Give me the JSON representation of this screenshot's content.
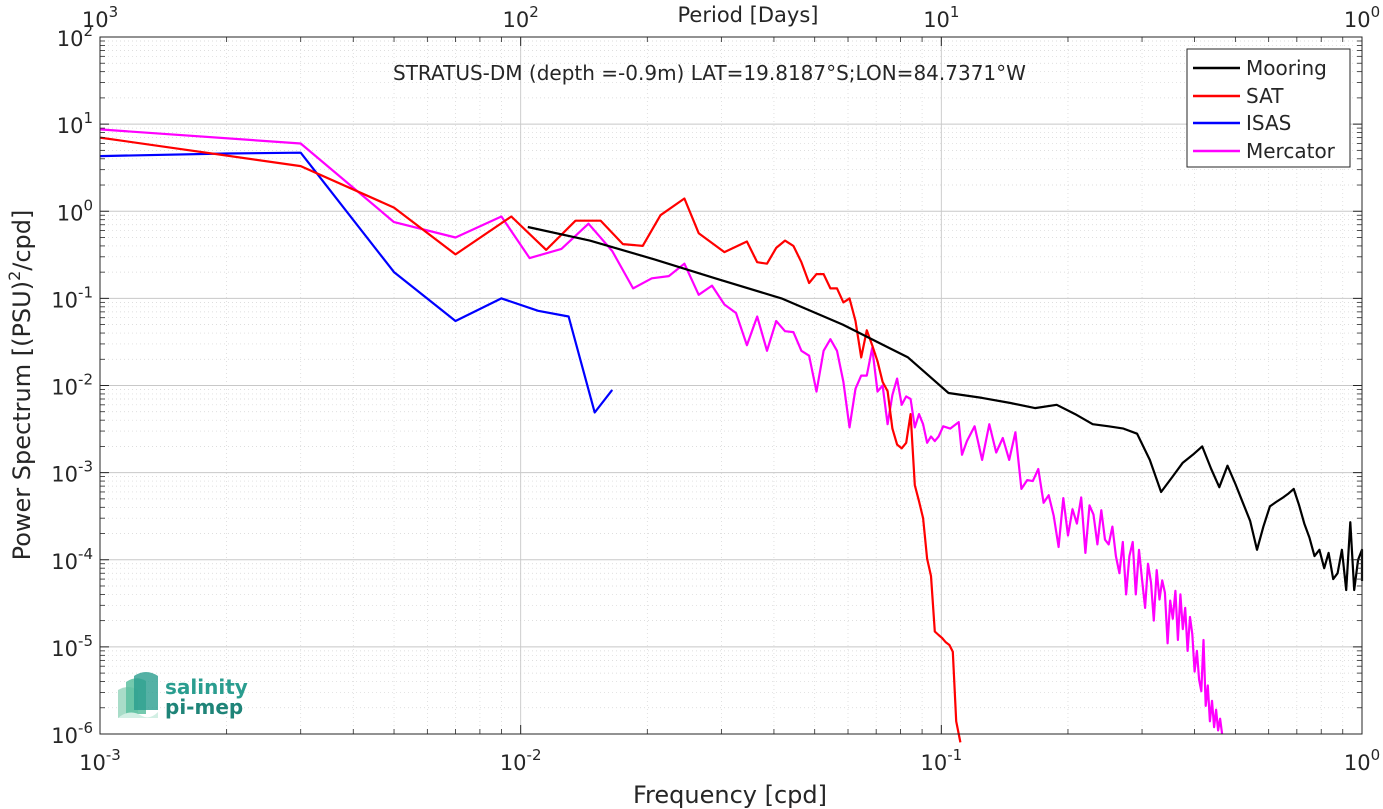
{
  "chart_data": {
    "type": "line",
    "title": "STRATUS-DM (depth =-0.9m) LAT=19.8187°S;LON=84.7371°W",
    "xlabel": "Frequency [cpd]",
    "ylabel_main": "Power Spectrum [(PSU)",
    "ylabel_sup": "2",
    "ylabel_tail": "/cpd]",
    "top_xlabel": "Period [Days]",
    "x_scale": "log",
    "y_scale": "log",
    "xlim": [
      0.001,
      1
    ],
    "ylim": [
      1e-06,
      100
    ],
    "grid": true,
    "legend_position": "top-right",
    "x_ticks": [
      {
        "value": 0.001,
        "base": "10",
        "exp": "-3"
      },
      {
        "value": 0.01,
        "base": "10",
        "exp": "-2"
      },
      {
        "value": 0.1,
        "base": "10",
        "exp": "-1"
      },
      {
        "value": 1,
        "base": "10",
        "exp": "0"
      }
    ],
    "top_ticks": [
      {
        "value": 0.001,
        "base": "10",
        "exp": "3"
      },
      {
        "value": 0.01,
        "base": "10",
        "exp": "2"
      },
      {
        "value": 0.1,
        "base": "10",
        "exp": "1"
      },
      {
        "value": 1,
        "base": "10",
        "exp": "0"
      }
    ],
    "y_ticks": [
      {
        "value": 100,
        "base": "10",
        "exp": "2"
      },
      {
        "value": 10,
        "base": "10",
        "exp": "1"
      },
      {
        "value": 1,
        "base": "10",
        "exp": "0"
      },
      {
        "value": 0.1,
        "base": "10",
        "exp": "-1"
      },
      {
        "value": 0.01,
        "base": "10",
        "exp": "-2"
      },
      {
        "value": 0.001,
        "base": "10",
        "exp": "-3"
      },
      {
        "value": 0.0001,
        "base": "10",
        "exp": "-4"
      },
      {
        "value": 1e-05,
        "base": "10",
        "exp": "-5"
      },
      {
        "value": 1e-06,
        "base": "10",
        "exp": "-6"
      }
    ],
    "series": [
      {
        "name": "Mooring",
        "color": "#000000",
        "points": [
          [
            0.0104,
            0.66
          ],
          [
            0.0146,
            0.46
          ],
          [
            0.0208,
            0.28
          ],
          [
            0.029,
            0.17
          ],
          [
            0.0417,
            0.1
          ],
          [
            0.0583,
            0.05
          ],
          [
            0.0833,
            0.021
          ],
          [
            0.104,
            0.0082
          ],
          [
            0.125,
            0.0072
          ],
          [
            0.146,
            0.0063
          ],
          [
            0.167,
            0.0055
          ],
          [
            0.188,
            0.006
          ],
          [
            0.208,
            0.0047
          ],
          [
            0.229,
            0.0036
          ],
          [
            0.25,
            0.0034
          ],
          [
            0.271,
            0.0032
          ],
          [
            0.292,
            0.0028
          ],
          [
            0.313,
            0.0014
          ],
          [
            0.333,
            0.0006
          ],
          [
            0.354,
            0.00089
          ],
          [
            0.375,
            0.0013
          ],
          [
            0.396,
            0.0016
          ],
          [
            0.417,
            0.002
          ],
          [
            0.438,
            0.0011
          ],
          [
            0.458,
            0.00068
          ],
          [
            0.479,
            0.0012
          ],
          [
            0.5,
            0.00074
          ],
          [
            0.521,
            0.00045
          ],
          [
            0.542,
            0.00028
          ],
          [
            0.563,
            0.00013
          ],
          [
            0.583,
            0.00024
          ],
          [
            0.604,
            0.00041
          ],
          [
            0.625,
            0.00046
          ],
          [
            0.646,
            0.00051
          ],
          [
            0.667,
            0.00057
          ],
          [
            0.688,
            0.00065
          ],
          [
            0.708,
            0.00043
          ],
          [
            0.729,
            0.00026
          ],
          [
            0.75,
            0.00018
          ],
          [
            0.771,
            0.00011
          ],
          [
            0.792,
            0.00013
          ],
          [
            0.813,
            8e-05
          ],
          [
            0.833,
            0.00012
          ],
          [
            0.854,
            6e-05
          ],
          [
            0.875,
            7e-05
          ],
          [
            0.896,
            0.00013
          ],
          [
            0.917,
            4.5e-05
          ],
          [
            0.938,
            0.00027
          ],
          [
            0.958,
            4.5e-05
          ],
          [
            0.979,
            0.0001
          ],
          [
            1.0,
            0.00013
          ],
          [
            1.0,
            5.7e-05
          ]
        ]
      },
      {
        "name": "SAT",
        "color": "#ff0000",
        "points": [
          [
            0.001,
            7
          ],
          [
            0.003,
            3.3
          ],
          [
            0.005,
            1.1
          ],
          [
            0.007,
            0.32
          ],
          [
            0.0095,
            0.87
          ],
          [
            0.0115,
            0.36
          ],
          [
            0.0135,
            0.78
          ],
          [
            0.0155,
            0.78
          ],
          [
            0.0175,
            0.42
          ],
          [
            0.0195,
            0.4
          ],
          [
            0.0215,
            0.9
          ],
          [
            0.0245,
            1.4
          ],
          [
            0.0265,
            0.56
          ],
          [
            0.0305,
            0.34
          ],
          [
            0.0345,
            0.45
          ],
          [
            0.0365,
            0.26
          ],
          [
            0.0385,
            0.25
          ],
          [
            0.0405,
            0.38
          ],
          [
            0.0425,
            0.46
          ],
          [
            0.0445,
            0.4
          ],
          [
            0.0465,
            0.26
          ],
          [
            0.0485,
            0.15
          ],
          [
            0.0505,
            0.19
          ],
          [
            0.0525,
            0.19
          ],
          [
            0.0545,
            0.13
          ],
          [
            0.0565,
            0.13
          ],
          [
            0.0585,
            0.09
          ],
          [
            0.0605,
            0.1
          ],
          [
            0.0625,
            0.055
          ],
          [
            0.0645,
            0.021
          ],
          [
            0.0665,
            0.043
          ],
          [
            0.0685,
            0.029
          ],
          [
            0.0705,
            0.019
          ],
          [
            0.0725,
            0.011
          ],
          [
            0.0745,
            0.0086
          ],
          [
            0.0765,
            0.0032
          ],
          [
            0.0785,
            0.0021
          ],
          [
            0.0805,
            0.0019
          ],
          [
            0.0825,
            0.0022
          ],
          [
            0.0845,
            0.0047
          ],
          [
            0.0865,
            0.00072
          ],
          [
            0.0885,
            0.00047
          ],
          [
            0.0905,
            0.0003
          ],
          [
            0.0925,
            0.000103
          ],
          [
            0.0945,
            6.5e-05
          ],
          [
            0.0965,
            1.5e-05
          ],
          [
            0.0985,
            1.37e-05
          ],
          [
            0.1005,
            1.26e-05
          ],
          [
            0.1025,
            1.13e-05
          ],
          [
            0.1045,
            1.05e-05
          ],
          [
            0.1065,
            8.8e-06
          ],
          [
            0.1085,
            1.4e-06
          ],
          [
            0.111,
            8e-07
          ]
        ]
      },
      {
        "name": "ISAS",
        "color": "#0000ff",
        "points": [
          [
            0.001,
            4.3
          ],
          [
            0.002,
            4.6
          ],
          [
            0.003,
            4.7
          ],
          [
            0.005,
            0.2
          ],
          [
            0.007,
            0.055
          ],
          [
            0.009,
            0.1
          ],
          [
            0.011,
            0.072
          ],
          [
            0.013,
            0.062
          ],
          [
            0.015,
            0.0049
          ],
          [
            0.0165,
            0.0089
          ]
        ]
      },
      {
        "name": "Mercator",
        "color": "#ff00ff",
        "points": [
          [
            0.001,
            8.7
          ],
          [
            0.003,
            6
          ],
          [
            0.005,
            0.75
          ],
          [
            0.007,
            0.5
          ],
          [
            0.009,
            0.87
          ],
          [
            0.0105,
            0.29
          ],
          [
            0.0125,
            0.37
          ],
          [
            0.0145,
            0.72
          ],
          [
            0.0165,
            0.35
          ],
          [
            0.0185,
            0.13
          ],
          [
            0.0205,
            0.17
          ],
          [
            0.0225,
            0.18
          ],
          [
            0.0245,
            0.25
          ],
          [
            0.0265,
            0.11
          ],
          [
            0.0285,
            0.14
          ],
          [
            0.0305,
            0.085
          ],
          [
            0.0325,
            0.068
          ],
          [
            0.0345,
            0.029
          ],
          [
            0.0365,
            0.062
          ],
          [
            0.0385,
            0.025
          ],
          [
            0.0405,
            0.055
          ],
          [
            0.0425,
            0.042
          ],
          [
            0.0445,
            0.041
          ],
          [
            0.0465,
            0.025
          ],
          [
            0.0485,
            0.022
          ],
          [
            0.0505,
            0.0085
          ],
          [
            0.0525,
            0.025
          ],
          [
            0.0545,
            0.034
          ],
          [
            0.0565,
            0.025
          ],
          [
            0.0585,
            0.011
          ],
          [
            0.0605,
            0.0033
          ],
          [
            0.0625,
            0.0092
          ],
          [
            0.0645,
            0.013
          ],
          [
            0.0665,
            0.013
          ],
          [
            0.0685,
            0.027
          ],
          [
            0.0705,
            0.0085
          ],
          [
            0.0725,
            0.01
          ],
          [
            0.0745,
            0.0036
          ],
          [
            0.0765,
            0.0078
          ],
          [
            0.0785,
            0.012
          ],
          [
            0.0805,
            0.006
          ],
          [
            0.0825,
            0.0075
          ],
          [
            0.0845,
            0.007
          ],
          [
            0.0865,
            0.0033
          ],
          [
            0.0885,
            0.0047
          ],
          [
            0.0905,
            0.0036
          ],
          [
            0.0925,
            0.0022
          ],
          [
            0.0945,
            0.0026
          ],
          [
            0.0965,
            0.0023
          ],
          [
            0.0985,
            0.0026
          ],
          [
            0.101,
            0.0034
          ],
          [
            0.105,
            0.0032
          ],
          [
            0.11,
            0.0038
          ],
          [
            0.112,
            0.0016
          ],
          [
            0.115,
            0.0023
          ],
          [
            0.12,
            0.0034
          ],
          [
            0.125,
            0.0014
          ],
          [
            0.13,
            0.0036
          ],
          [
            0.135,
            0.0017
          ],
          [
            0.14,
            0.0025
          ],
          [
            0.145,
            0.0014
          ],
          [
            0.15,
            0.0029
          ],
          [
            0.155,
            0.00065
          ],
          [
            0.16,
            0.00082
          ],
          [
            0.165,
            0.0008
          ],
          [
            0.17,
            0.0011
          ],
          [
            0.175,
            0.00045
          ],
          [
            0.18,
            0.00055
          ],
          [
            0.185,
            0.00032
          ],
          [
            0.19,
            0.00014
          ],
          [
            0.195,
            0.00051
          ],
          [
            0.2,
            0.00019
          ],
          [
            0.205,
            0.00038
          ],
          [
            0.21,
            0.00026
          ],
          [
            0.215,
            0.00052
          ],
          [
            0.22,
            0.00012
          ],
          [
            0.225,
            0.00042
          ],
          [
            0.23,
            0.00033
          ],
          [
            0.235,
            0.00015
          ],
          [
            0.24,
            0.00037
          ],
          [
            0.245,
            0.00017
          ],
          [
            0.25,
            0.00015
          ],
          [
            0.255,
            0.00024
          ],
          [
            0.26,
            0.00011
          ],
          [
            0.265,
            7e-05
          ],
          [
            0.27,
            0.00016
          ],
          [
            0.275,
            4e-05
          ],
          [
            0.28,
            0.00011
          ],
          [
            0.285,
            0.00016
          ],
          [
            0.29,
            4e-05
          ],
          [
            0.295,
            0.00013
          ],
          [
            0.3,
            6e-05
          ],
          [
            0.305,
            2.8e-05
          ],
          [
            0.31,
            9e-05
          ],
          [
            0.315,
            5.5e-05
          ],
          [
            0.32,
            2e-05
          ],
          [
            0.325,
            7.6e-05
          ],
          [
            0.33,
            3.5e-05
          ],
          [
            0.335,
            5.8e-05
          ],
          [
            0.34,
            4.2e-05
          ],
          [
            0.345,
            1.1e-05
          ],
          [
            0.35,
            3.4e-05
          ],
          [
            0.355,
            2.1e-05
          ],
          [
            0.36,
            4.4e-05
          ],
          [
            0.365,
            1.2e-05
          ],
          [
            0.37,
            4e-05
          ],
          [
            0.375,
            1.6e-05
          ],
          [
            0.38,
            2.8e-05
          ],
          [
            0.385,
            9e-06
          ],
          [
            0.39,
            2.2e-05
          ],
          [
            0.395,
            1.4e-05
          ],
          [
            0.4,
            5.2e-06
          ],
          [
            0.405,
            9e-06
          ],
          [
            0.41,
            4.2e-06
          ],
          [
            0.415,
            3.1e-06
          ],
          [
            0.42,
            1.2e-05
          ],
          [
            0.425,
            2.1e-06
          ],
          [
            0.43,
            3.6e-06
          ],
          [
            0.435,
            1.4e-06
          ],
          [
            0.44,
            2.4e-06
          ],
          [
            0.445,
            1.2e-06
          ],
          [
            0.45,
            1.9e-06
          ],
          [
            0.455,
            1.1e-06
          ],
          [
            0.46,
            1.5e-06
          ],
          [
            0.465,
            1e-06
          ]
        ]
      }
    ],
    "logo": {
      "line1": "salinity",
      "line2": "pi-mep",
      "color": "#2a9d8f"
    }
  }
}
